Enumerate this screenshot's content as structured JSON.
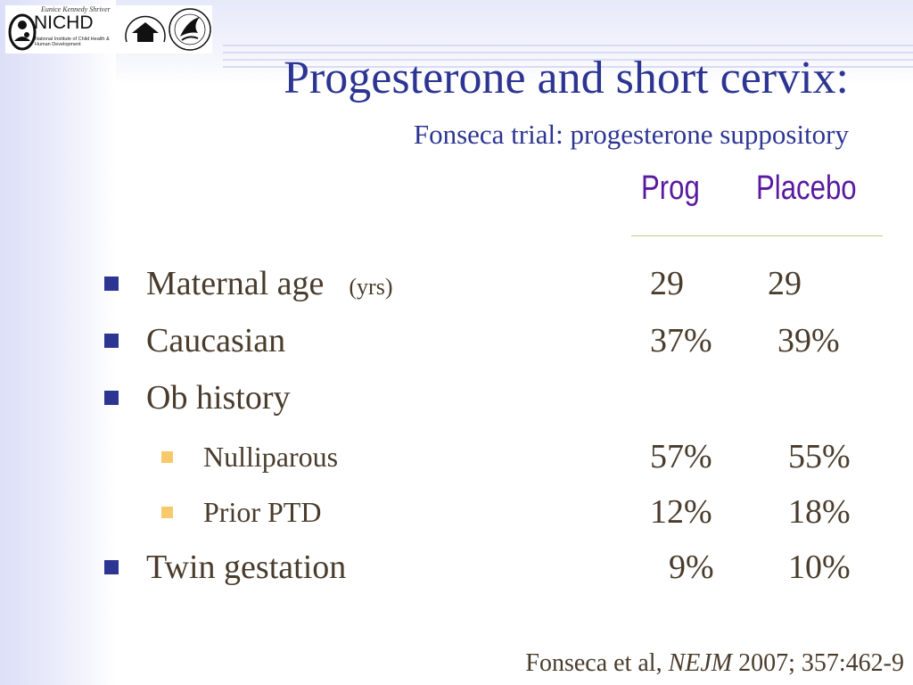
{
  "logo": {
    "script_text": "Eunice Kennedy Shriver",
    "nichd": "NICHD",
    "nichd_sub": "National Institute of Child Health & Human Development",
    "nih_ring_text": "NATIONAL INSTITUTES OF HEALTH",
    "hhs_ring_text": "DEPARTMENT OF HEALTH & HUMAN SERVICES USA"
  },
  "title": "Progesterone and short cervix:",
  "subtitle": "Fonseca trial: progesterone suppository",
  "columns": {
    "col1": "Prog",
    "col2": "Placebo"
  },
  "rows": [
    {
      "label": "Maternal age",
      "unit": "(yrs)",
      "prog": "29",
      "placebo": "29"
    },
    {
      "label": "Caucasian",
      "prog": "37%",
      "placebo": "39%"
    },
    {
      "label": "Ob history"
    },
    {
      "label": "Nulliparous",
      "prog": "57%",
      "placebo": "55%"
    },
    {
      "label": "Prior PTD",
      "prog": "12%",
      "placebo": "18%"
    },
    {
      "label": "Twin gestation",
      "prog": "9%",
      "placebo": "10%"
    }
  ],
  "citation": {
    "authors": "Fonseca et al, ",
    "journal": "NEJM",
    "details": " 2007; 357:462-9"
  },
  "colors": {
    "title": "#2d3592",
    "column_header": "#5a1aa0",
    "body_text": "#4a3c2c",
    "bullet_primary": "#2d3592",
    "bullet_secondary": "#f7c96a"
  }
}
